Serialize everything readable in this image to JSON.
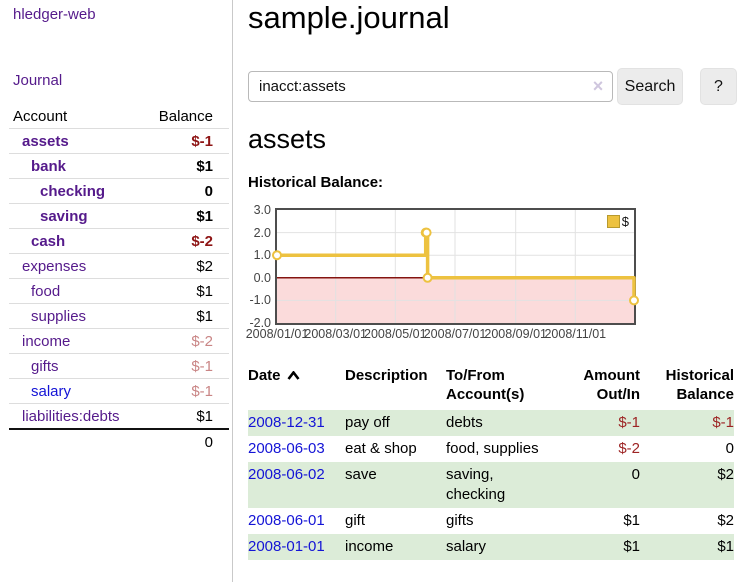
{
  "app": {
    "brand": "hledger-web"
  },
  "sidebar": {
    "journal_link": "Journal",
    "accounts": {
      "header": {
        "account": "Account",
        "balance": "Balance"
      },
      "rows": [
        {
          "name": "assets",
          "balance": "$-1",
          "level": 1,
          "active": true
        },
        {
          "name": "bank",
          "balance": "$1",
          "level": 2,
          "active": true
        },
        {
          "name": "checking",
          "balance": "0",
          "level": 3,
          "active": true
        },
        {
          "name": "saving",
          "balance": "$1",
          "level": 3,
          "active": true
        },
        {
          "name": "cash",
          "balance": "$-2",
          "level": 2,
          "active": true
        },
        {
          "name": "expenses",
          "balance": "$2",
          "level": 1,
          "active": false
        },
        {
          "name": "food",
          "balance": "$1",
          "level": 2,
          "active": false
        },
        {
          "name": "supplies",
          "balance": "$1",
          "level": 2,
          "active": false
        },
        {
          "name": "income",
          "balance": "$-2",
          "level": 1,
          "active": false
        },
        {
          "name": "gifts",
          "balance": "$-1",
          "level": 2,
          "active": false
        },
        {
          "name": "salary",
          "balance": "$-1",
          "level": 2,
          "active": false,
          "unvisited": true
        },
        {
          "name": "liabilities:debts",
          "balance": "$1",
          "level": 1,
          "active": false
        }
      ],
      "total": "0"
    }
  },
  "header": {
    "title": "sample.journal"
  },
  "search": {
    "value": "inacct:assets",
    "clear_icon": "×",
    "search_button": "Search",
    "help_button": "?"
  },
  "account_view": {
    "heading": "assets",
    "chart_title": "Historical Balance:"
  },
  "chart_data": {
    "type": "line",
    "step": true,
    "x": [
      "2008-01-01",
      "2008-06-01",
      "2008-06-02",
      "2008-06-03",
      "2008-12-31"
    ],
    "series": [
      {
        "name": "$",
        "color": "#edc240",
        "values": [
          1,
          2,
          2,
          0,
          -1
        ]
      }
    ],
    "xlim": [
      "2008-01-01",
      "2008-12-31"
    ],
    "ylim": [
      -2,
      3
    ],
    "y_ticks": [
      3,
      2,
      1,
      0,
      -1,
      -2
    ],
    "x_tick_labels": [
      "2008/01/01",
      "2008/03/01",
      "2008/05/01",
      "2008/07/01",
      "2008/09/01",
      "2008/11/01"
    ],
    "legend": {
      "label": "$",
      "position": "top-right"
    },
    "grid": true,
    "negative_fill": "#fbdbdb",
    "zero_line_color": "#841410"
  },
  "register": {
    "headers": {
      "date": "Date",
      "sort_icon": "chevron-up",
      "description": "Description",
      "tofrom": "To/From Account(s)",
      "amount": "Amount Out/In",
      "balance": "Historical Balance"
    },
    "rows": [
      {
        "date": "2008-12-31",
        "description": "pay off",
        "accounts": "debts",
        "amount": "$-1",
        "balance": "$-1",
        "shaded": true
      },
      {
        "date": "2008-06-03",
        "description": "eat & shop",
        "accounts": "food, supplies",
        "amount": "$-2",
        "balance": "0",
        "shaded": false
      },
      {
        "date": "2008-06-02",
        "description": "save",
        "accounts": "saving, checking",
        "amount": "0",
        "balance": "$2",
        "shaded": true
      },
      {
        "date": "2008-06-01",
        "description": "gift",
        "accounts": "gifts",
        "amount": "$1",
        "balance": "$2",
        "shaded": false
      },
      {
        "date": "2008-01-01",
        "description": "income",
        "accounts": "salary",
        "amount": "$1",
        "balance": "$1",
        "shaded": true
      }
    ]
  },
  "colors": {
    "link_purple": "#551a8b",
    "link_blue": "#1414d6",
    "neg_strong": "#8e1414",
    "neg": "#9d2424",
    "neg_muted": "#c98585",
    "row_green": "#dcecd8",
    "series_yellow": "#edc240"
  }
}
